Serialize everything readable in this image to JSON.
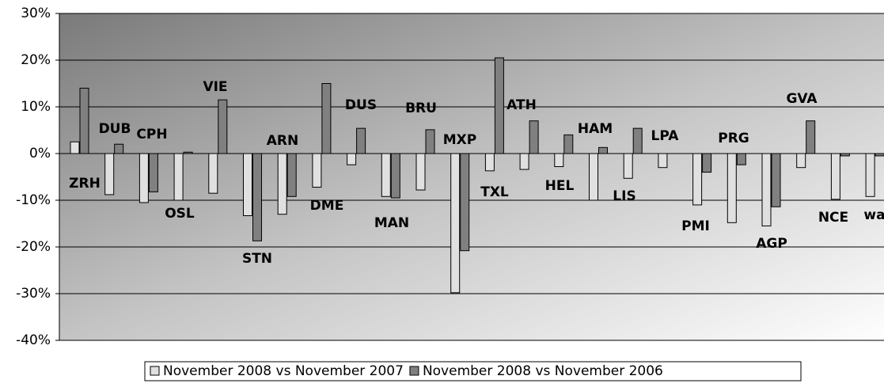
{
  "chart_data": {
    "type": "bar",
    "categories": [
      "ZRH",
      "DUB",
      "CPH",
      "OSL",
      "VIE",
      "STN",
      "ARN",
      "DME",
      "DUS",
      "MAN",
      "BRU",
      "MXP",
      "TXL",
      "ATH",
      "HEL",
      "HAM",
      "LIS",
      "LPA",
      "PMI",
      "PRG",
      "AGP",
      "GVA",
      "NCE",
      "wa"
    ],
    "series": [
      {
        "name": "November 2008 vs November 2007",
        "color": "#e0e0e0",
        "values": [
          2.5,
          -8.8,
          -10.5,
          -10,
          -8.5,
          -13.3,
          -13,
          -7.2,
          -2.4,
          -9.2,
          -7.8,
          -29.8,
          -3.7,
          -3.4,
          -2.8,
          -10,
          -5.3,
          -3,
          -11,
          -14.8,
          -15.5,
          -3,
          -9.8,
          -9.2
        ]
      },
      {
        "name": "November 2008 vs November 2006",
        "color": "#808080",
        "values": [
          14,
          2,
          -8.2,
          0.3,
          11.5,
          -18.7,
          -9.2,
          15,
          5.4,
          -9.5,
          5.1,
          -20.8,
          20.5,
          7,
          4,
          1.3,
          5.4,
          null,
          -4,
          -2.4,
          -11.4,
          7,
          -0.5,
          -0.5
        ]
      }
    ],
    "ylim": [
      -40,
      30
    ],
    "yticks": [
      {
        "value": -40,
        "label": "-40%"
      },
      {
        "value": -30,
        "label": "-30%"
      },
      {
        "value": -20,
        "label": "-20%"
      },
      {
        "value": -10,
        "label": "-10%"
      },
      {
        "value": 0,
        "label": "0%"
      },
      {
        "value": 10,
        "label": "10%"
      },
      {
        "value": 20,
        "label": "20%"
      },
      {
        "value": 30,
        "label": "30%"
      }
    ],
    "grid": true
  }
}
